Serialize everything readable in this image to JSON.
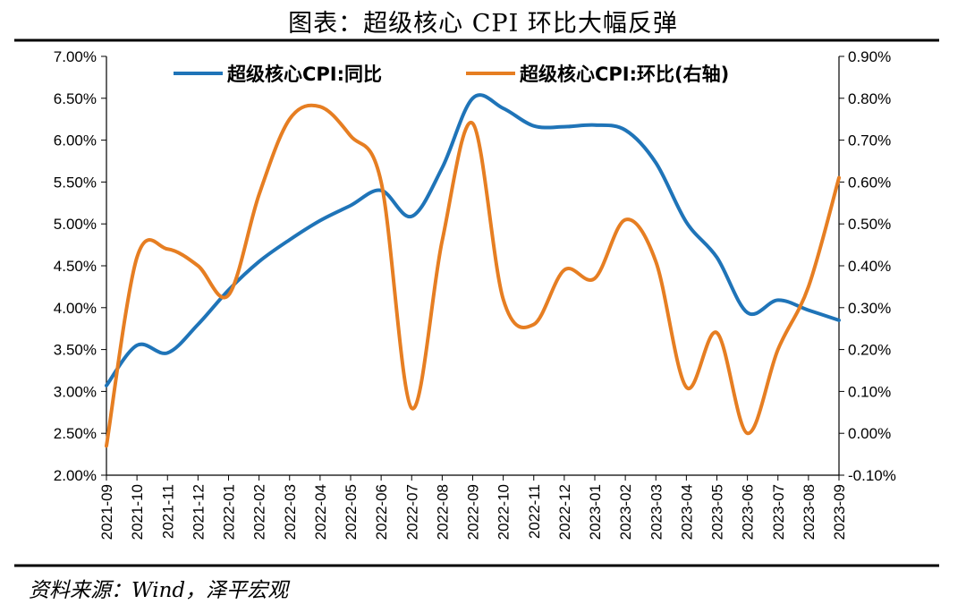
{
  "header": {
    "title": "图表：超级核心 CPI 环比大幅反弹"
  },
  "footer": {
    "source": "资料来源：Wind，泽平宏观"
  },
  "colors": {
    "series_yoy": "#1f74b8",
    "series_mom": "#e67e22",
    "axis": "#000000"
  },
  "chart_data": {
    "type": "line",
    "x": [
      "2021-09",
      "2021-10",
      "2021-11",
      "2021-12",
      "2022-01",
      "2022-02",
      "2022-03",
      "2022-04",
      "2022-05",
      "2022-06",
      "2022-07",
      "2022-08",
      "2022-09",
      "2022-10",
      "2022-11",
      "2022-12",
      "2023-01",
      "2023-02",
      "2023-03",
      "2023-04",
      "2023-05",
      "2023-06",
      "2023-07",
      "2023-08",
      "2023-09"
    ],
    "y_left": {
      "ylim": [
        2.0,
        7.0
      ],
      "ticks": [
        "2.00%",
        "2.50%",
        "3.00%",
        "3.50%",
        "4.00%",
        "4.50%",
        "5.00%",
        "5.50%",
        "6.00%",
        "6.50%",
        "7.00%"
      ]
    },
    "y_right": {
      "ylim": [
        -0.1,
        0.9
      ],
      "ticks": [
        "-0.10%",
        "0.00%",
        "0.10%",
        "0.20%",
        "0.30%",
        "0.40%",
        "0.50%",
        "0.60%",
        "0.70%",
        "0.80%",
        "0.90%"
      ]
    },
    "series": [
      {
        "name": "超级核心CPI:同比",
        "axis": "left",
        "values": [
          3.07,
          3.55,
          3.46,
          3.8,
          4.21,
          4.55,
          4.81,
          5.04,
          5.22,
          5.4,
          5.09,
          5.67,
          6.5,
          6.38,
          6.17,
          6.16,
          6.18,
          6.12,
          5.73,
          5.02,
          4.6,
          3.94,
          4.09,
          3.97,
          3.85
        ]
      },
      {
        "name": "超级核心CPI:环比(右轴)",
        "axis": "right",
        "values": [
          -0.03,
          0.42,
          0.44,
          0.4,
          0.33,
          0.57,
          0.75,
          0.78,
          0.71,
          0.6,
          0.06,
          0.46,
          0.74,
          0.32,
          0.26,
          0.39,
          0.37,
          0.51,
          0.41,
          0.11,
          0.24,
          0.0,
          0.2,
          0.35,
          0.61
        ]
      }
    ],
    "grid": false,
    "legend": "top"
  }
}
